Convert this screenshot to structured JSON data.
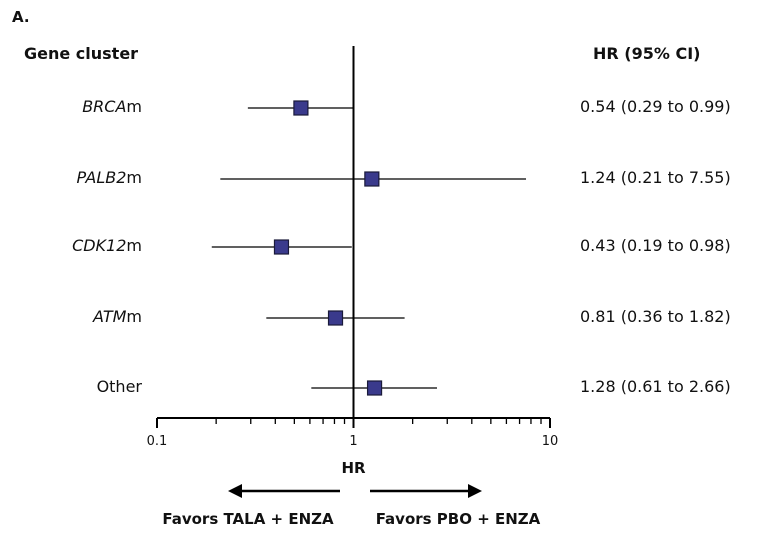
{
  "panel_label": "A.",
  "left_header": "Gene cluster",
  "right_header": "HR (95% CI)",
  "rows": [
    {
      "name_italic": "BRCA",
      "name_suffix": "m",
      "ci_text": "0.54 (0.29 to 0.99)"
    },
    {
      "name_italic": "PALB2",
      "name_suffix": "m",
      "ci_text": "1.24 (0.21 to 7.55)"
    },
    {
      "name_italic": "CDK12",
      "name_suffix": "m",
      "ci_text": "0.43 (0.19 to 0.98)"
    },
    {
      "name_italic": "ATM",
      "name_suffix": "m",
      "ci_text": "0.81 (0.36 to 1.82)"
    },
    {
      "name_italic": "",
      "name_suffix": "Other",
      "ci_text": "1.28 (0.61 to 2.66)"
    }
  ],
  "favors_left": "Favors TALA + ENZA",
  "favors_right": "Favors PBO + ENZA",
  "colors": {
    "marker_fill": "#3a3a8c",
    "marker_stroke": "#1a1a3a",
    "line": "#000000"
  },
  "chart_data": {
    "type": "forest",
    "x_scale": "log",
    "xlim": [
      0.1,
      10
    ],
    "x_ticks": [
      {
        "value": 0.1,
        "label": "0.1"
      },
      {
        "value": 1,
        "label": "1"
      },
      {
        "value": 10,
        "label": "10"
      }
    ],
    "xlabel": "HR",
    "reference_line": 1,
    "points": [
      {
        "label": "BRCAm",
        "hr": 0.54,
        "lo": 0.29,
        "hi": 0.99
      },
      {
        "label": "PALB2m",
        "hr": 1.24,
        "lo": 0.21,
        "hi": 7.55
      },
      {
        "label": "CDK12m",
        "hr": 0.43,
        "lo": 0.19,
        "hi": 0.98
      },
      {
        "label": "ATMm",
        "hr": 0.81,
        "lo": 0.36,
        "hi": 1.82
      },
      {
        "label": "Other",
        "hr": 1.28,
        "lo": 0.61,
        "hi": 2.66
      }
    ]
  }
}
